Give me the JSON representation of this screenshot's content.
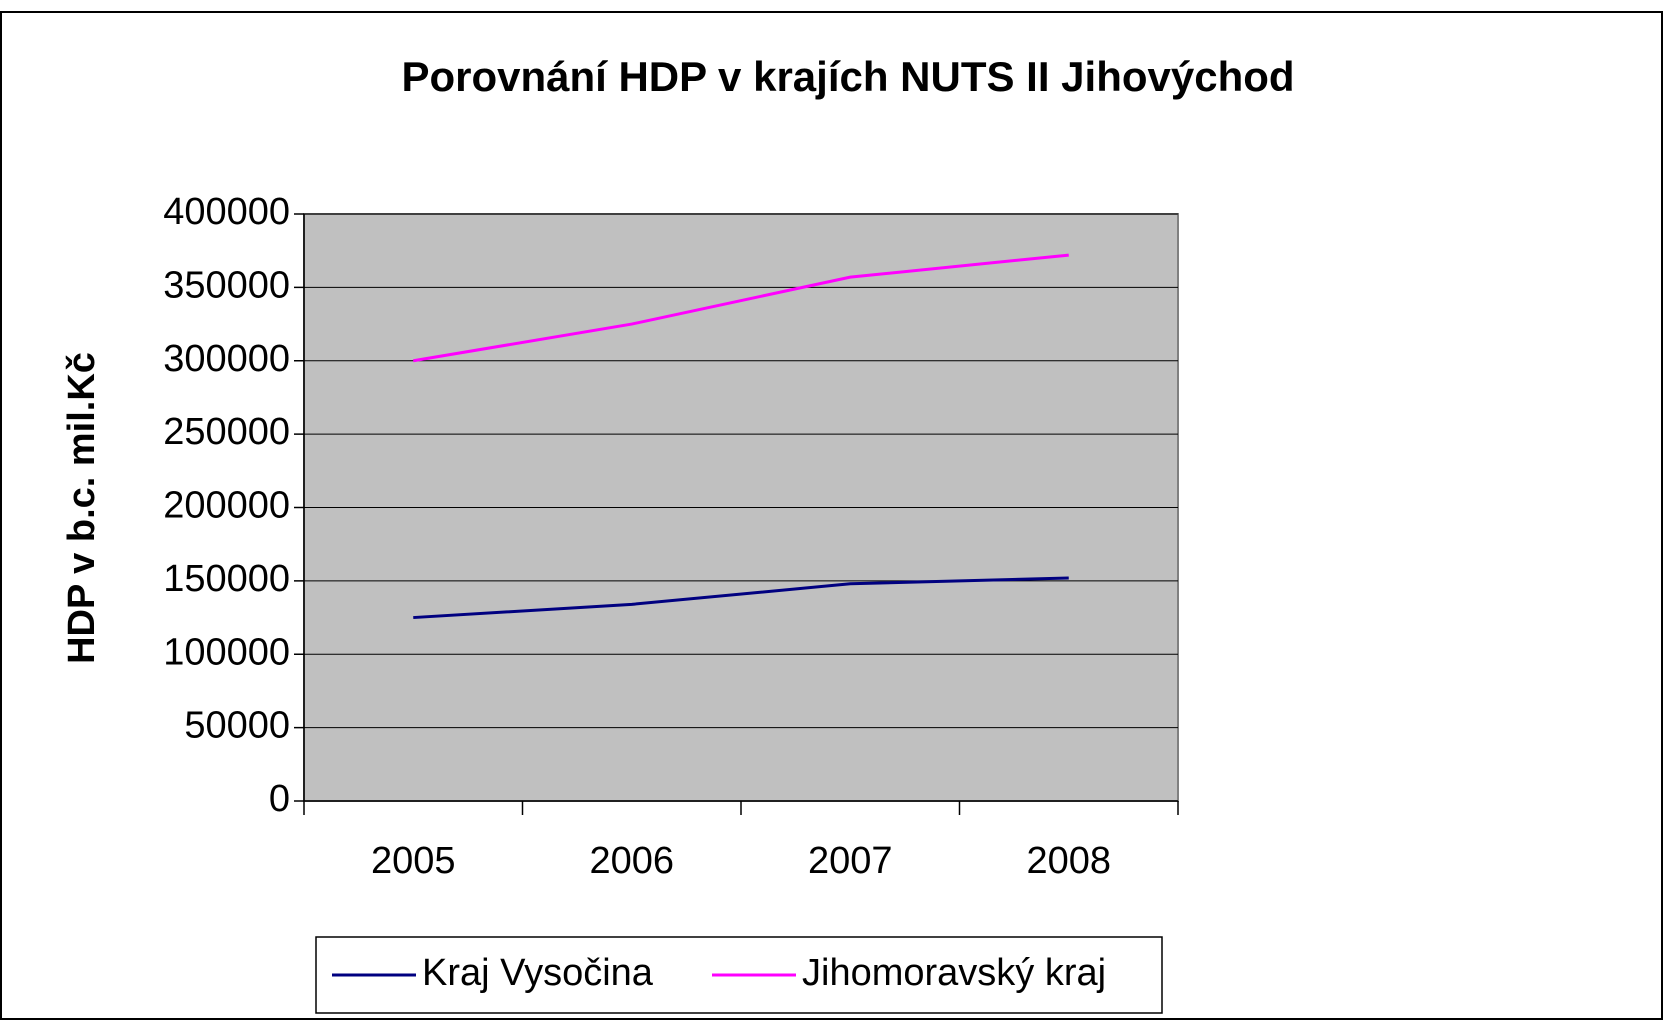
{
  "chart_data": {
    "type": "line",
    "title": "Porovnání HDP v krajích NUTS II Jihovýchod",
    "y_label": "HDP v b.c. mil.Kč",
    "categories": [
      "2005",
      "2006",
      "2007",
      "2008"
    ],
    "series": [
      {
        "name": "Kraj Vysočina",
        "color": "#000080",
        "values": [
          125000,
          134000,
          148000,
          152000
        ]
      },
      {
        "name": "Jihomoravský kraj",
        "color": "#ff00ff",
        "values": [
          300000,
          325000,
          357000,
          372000
        ]
      }
    ],
    "ylim": [
      0,
      400000
    ],
    "yticks": [
      0,
      50000,
      100000,
      150000,
      200000,
      250000,
      300000,
      350000,
      400000
    ],
    "grid": true,
    "legend": "bottom"
  }
}
